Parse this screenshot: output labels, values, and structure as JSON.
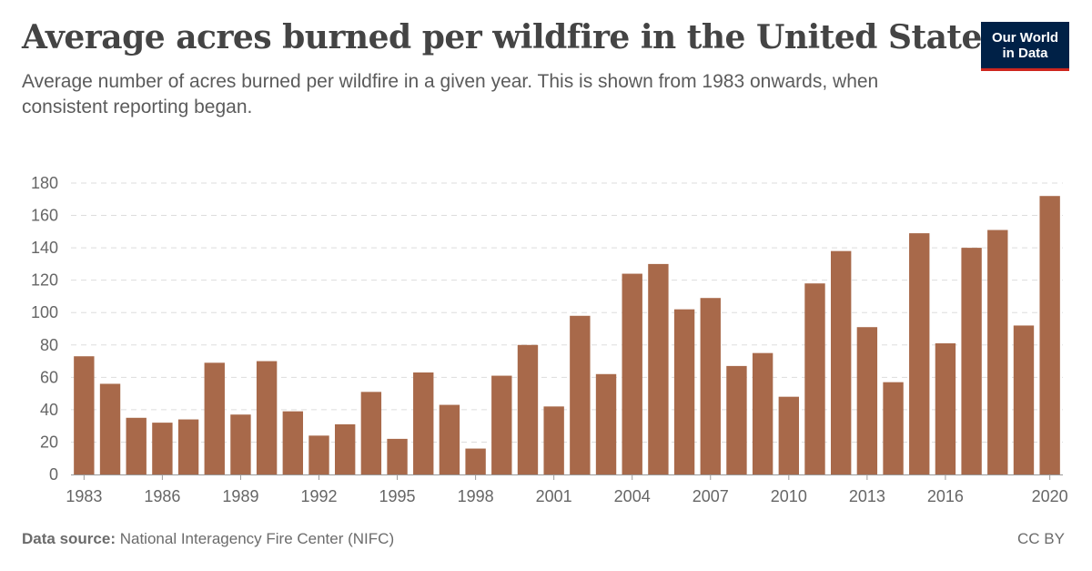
{
  "header": {
    "title": "Average acres burned per wildfire in the United States",
    "subtitle": "Average number of acres burned per wildfire in a given year. This is shown from 1983 onwards, when consistent reporting began."
  },
  "logo": {
    "line1": "Our World",
    "line2": "in Data",
    "bg_color": "#002147",
    "accent_color": "#ce261e"
  },
  "footer": {
    "source_label": "Data source:",
    "source_text": "National Interagency Fire Center (NIFC)",
    "license": "CC BY"
  },
  "chart_data": {
    "type": "bar",
    "title": "Average acres burned per wildfire in the United States",
    "xlabel": "",
    "ylabel": "",
    "bar_color": "#a8694a",
    "grid": true,
    "ylim": [
      0,
      180
    ],
    "y_ticks": [
      0,
      20,
      40,
      60,
      80,
      100,
      120,
      140,
      160,
      180
    ],
    "x_tick_labels": [
      "1983",
      "1986",
      "1989",
      "1992",
      "1995",
      "1998",
      "2001",
      "2004",
      "2007",
      "2010",
      "2013",
      "2016",
      "2020"
    ],
    "categories": [
      "1983",
      "1984",
      "1985",
      "1986",
      "1987",
      "1988",
      "1989",
      "1990",
      "1991",
      "1992",
      "1993",
      "1994",
      "1995",
      "1996",
      "1997",
      "1998",
      "1999",
      "2000",
      "2001",
      "2002",
      "2003",
      "2004",
      "2005",
      "2006",
      "2007",
      "2008",
      "2009",
      "2010",
      "2011",
      "2012",
      "2013",
      "2014",
      "2015",
      "2016",
      "2017",
      "2018",
      "2019",
      "2020"
    ],
    "values": [
      73,
      56,
      35,
      32,
      34,
      69,
      37,
      70,
      39,
      24,
      31,
      51,
      22,
      63,
      43,
      16,
      61,
      80,
      42,
      98,
      62,
      124,
      130,
      102,
      109,
      67,
      75,
      48,
      118,
      138,
      91,
      57,
      149,
      81,
      140,
      151,
      92,
      172
    ]
  }
}
